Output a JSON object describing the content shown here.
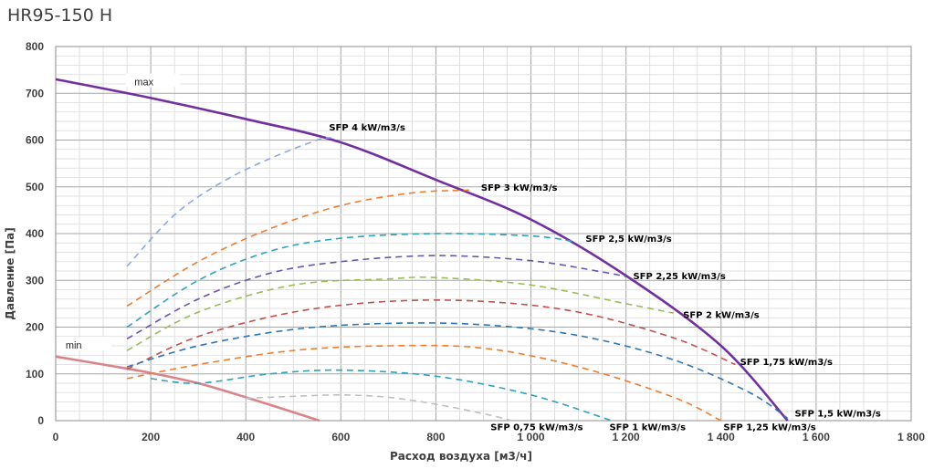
{
  "chart_data": {
    "type": "line",
    "title": "HR95-150 H",
    "xlabel": "Расход воздуха [м3/ч]",
    "ylabel": "Давление [Па]",
    "xlim": [
      0,
      1800
    ],
    "ylim": [
      0,
      800
    ],
    "x_ticks": [
      "0",
      "200",
      "400",
      "600",
      "800",
      "1 000",
      "1 200",
      "1 400",
      "1 600",
      "1 800"
    ],
    "y_ticks": [
      "0",
      "100",
      "200",
      "300",
      "400",
      "500",
      "600",
      "700",
      "800"
    ],
    "grid": true,
    "series": [
      {
        "name": "max",
        "color": "#7030a0",
        "style": "solid",
        "x": [
          0,
          200,
          400,
          600,
          800,
          1000,
          1200,
          1400,
          1540
        ],
        "y": [
          730,
          690,
          645,
          595,
          515,
          430,
          310,
          160,
          0
        ]
      },
      {
        "name": "min",
        "color": "#d9848b",
        "style": "solid",
        "x": [
          0,
          100,
          200,
          300,
          400,
          500,
          555
        ],
        "y": [
          137,
          120,
          102,
          80,
          50,
          18,
          0
        ]
      },
      {
        "name": "SFP 4 kW/m3/s",
        "color": "#8ea9db",
        "style": "dashed",
        "x": [
          150,
          250,
          350,
          450,
          550,
          580
        ],
        "y": [
          330,
          440,
          510,
          560,
          600,
          605
        ]
      },
      {
        "name": "SFP 3 kW/m3/s",
        "color": "#ed7d31",
        "style": "dashed",
        "x": [
          150,
          300,
          450,
          600,
          750,
          870
        ],
        "y": [
          245,
          340,
          410,
          460,
          487,
          493
        ]
      },
      {
        "name": "SFP 2,5 kW/m3/s",
        "color": "#2ea3b8",
        "style": "dashed",
        "x": [
          150,
          300,
          450,
          600,
          800,
          1000,
          1090
        ],
        "y": [
          200,
          300,
          362,
          390,
          400,
          395,
          383
        ]
      },
      {
        "name": "SFP 2,25 kW/m3/s",
        "color": "#6a55a8",
        "style": "dashed",
        "x": [
          150,
          300,
          450,
          600,
          800,
          1000,
          1150,
          1200
        ],
        "y": [
          175,
          260,
          315,
          340,
          353,
          342,
          318,
          308
        ]
      },
      {
        "name": "SFP 2 kW/m3/s",
        "color": "#9bbb59",
        "style": "dashed",
        "x": [
          150,
          300,
          500,
          700,
          800,
          1000,
          1200,
          1300
        ],
        "y": [
          150,
          232,
          290,
          303,
          306,
          290,
          250,
          230
        ]
      },
      {
        "name": "SFP 1,75 kW/m3/s",
        "color": "#c0504d",
        "style": "dashed",
        "x": [
          150,
          300,
          500,
          700,
          900,
          1100,
          1300,
          1430
        ],
        "y": [
          110,
          180,
          232,
          255,
          255,
          232,
          177,
          120
        ]
      },
      {
        "name": "SFP 1,5 kW/m3/s",
        "color": "#2e75b6",
        "style": "dashed",
        "x": [
          150,
          300,
          500,
          700,
          900,
          1100,
          1300,
          1460,
          1540
        ],
        "y": [
          115,
          160,
          195,
          208,
          205,
          182,
          130,
          60,
          5
        ]
      },
      {
        "name": "SFP 1,25 kW/m3/s",
        "color": "#ed7d31",
        "style": "dashed",
        "x": [
          150,
          300,
          500,
          700,
          900,
          1100,
          1300,
          1400
        ],
        "y": [
          90,
          120,
          150,
          160,
          155,
          115,
          50,
          0
        ]
      },
      {
        "name": "SFP 1 kW/m3/s",
        "color": "#2ea3b8",
        "style": "dashed",
        "x": [
          200,
          300,
          450,
          600,
          800,
          1000,
          1170
        ],
        "y": [
          90,
          80,
          100,
          108,
          95,
          55,
          0
        ]
      },
      {
        "name": "SFP 0,75 kW/m3/s",
        "color": "#bfbfbf",
        "style": "dashed",
        "x": [
          400,
          500,
          600,
          700,
          800,
          900,
          960
        ],
        "y": [
          48,
          52,
          55,
          50,
          35,
          15,
          0
        ]
      }
    ],
    "labels": [
      {
        "text": "max",
        "x": 185,
        "y": 725
      },
      {
        "text": "min",
        "x": 40,
        "y": 162
      },
      {
        "text": "SFP 4 kW/m3/s",
        "x": 575,
        "y": 628
      },
      {
        "text": "SFP 3 kW/m3/s",
        "x": 895,
        "y": 500
      },
      {
        "text": "SFP 2,5 kW/m3/s",
        "x": 1115,
        "y": 390
      },
      {
        "text": "SFP 2,25 kW/m3/s",
        "x": 1215,
        "y": 310
      },
      {
        "text": "SFP 2 kW/m3/s",
        "x": 1320,
        "y": 227
      },
      {
        "text": "SFP 1,75 kW/m3/s",
        "x": 1440,
        "y": 127
      },
      {
        "text": "SFP 1,5 kW/m3/s",
        "x": 1555,
        "y": 17
      },
      {
        "text": "SFP 0,75 kW/m3/s",
        "x": 915,
        "y": -13
      },
      {
        "text": "SFP 1 kW/m3/s",
        "x": 1165,
        "y": -13
      },
      {
        "text": "SFP 1,25 kW/m3/s",
        "x": 1405,
        "y": -13
      }
    ]
  }
}
